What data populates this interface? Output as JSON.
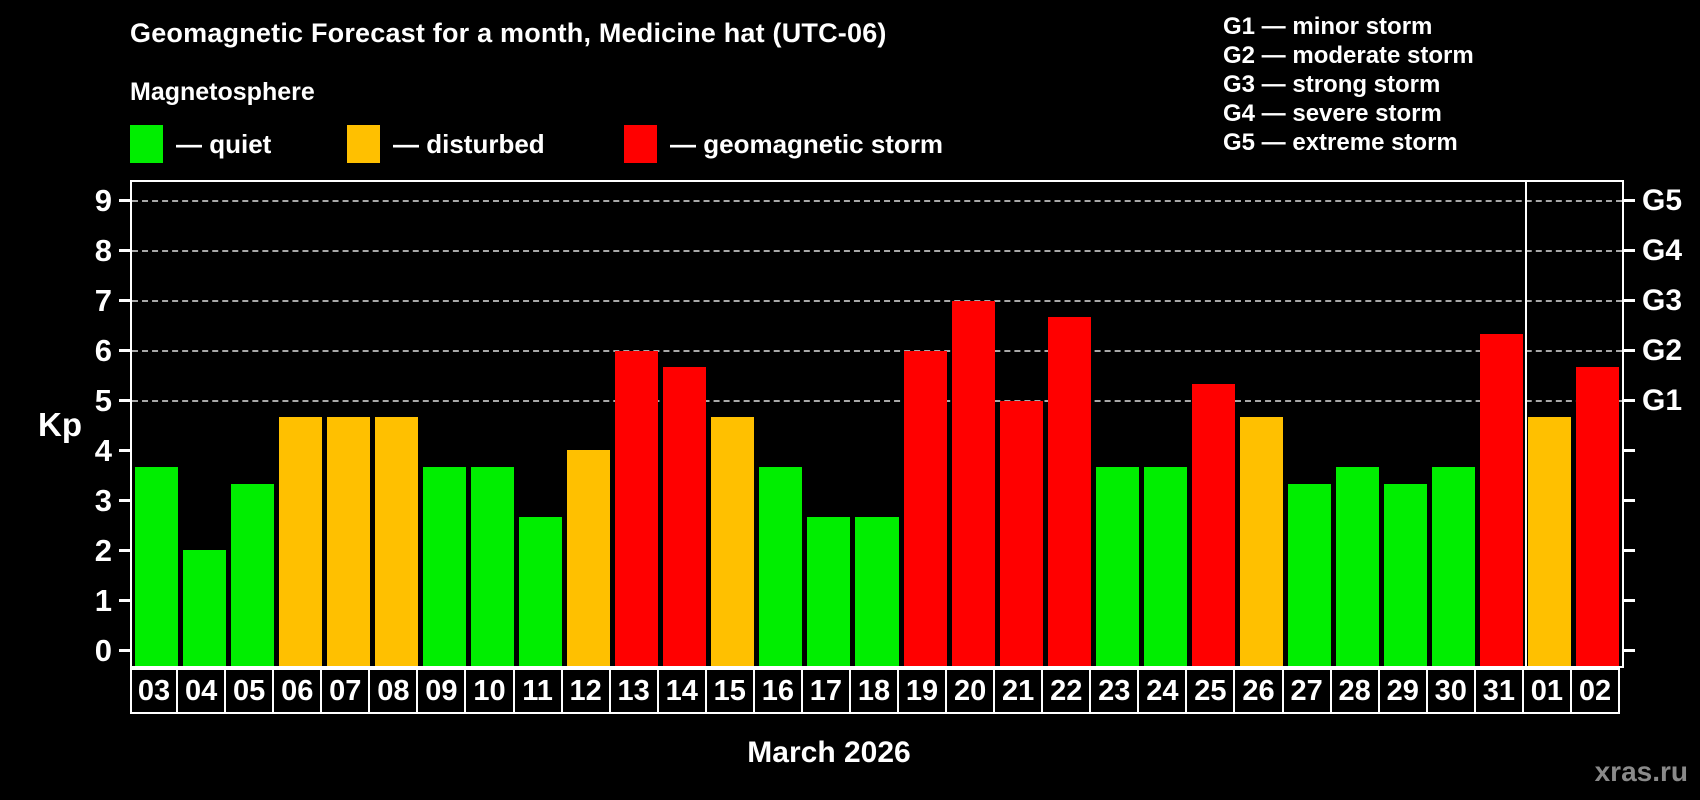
{
  "title": "Geomagnetic Forecast for a month, Medicine hat (UTC-06)",
  "subtitle": "Magnetosphere",
  "legend": [
    {
      "key": "quiet",
      "label": "— quiet",
      "x": 130
    },
    {
      "key": "disturbed",
      "label": "— disturbed",
      "x": 347
    },
    {
      "key": "storm",
      "label": "— geomagnetic storm",
      "x": 624
    }
  ],
  "g_scale_legend": [
    "G1 — minor storm",
    "G2 — moderate storm",
    "G3 — strong storm",
    "G4 — severe storm",
    "G5 — extreme storm"
  ],
  "colors": {
    "quiet": "#00ee00",
    "disturbed": "#ffc000",
    "storm": "#ff0000",
    "grid": "#a8a8a8",
    "axis": "#ffffff",
    "watermark": "#8a8a8a"
  },
  "axis": {
    "y_label": "Kp",
    "y_ticks": [
      0,
      1,
      2,
      3,
      4,
      5,
      6,
      7,
      8,
      9
    ],
    "g_labels": [
      {
        "kp": 5,
        "label": "G1"
      },
      {
        "kp": 6,
        "label": "G2"
      },
      {
        "kp": 7,
        "label": "G3"
      },
      {
        "kp": 8,
        "label": "G4"
      },
      {
        "kp": 9,
        "label": "G5"
      }
    ]
  },
  "x_axis_label": "March 2026",
  "watermark": "xras.ru",
  "chart_data": {
    "type": "bar",
    "title": "Geomagnetic Forecast for a month, Medicine hat (UTC-06)",
    "xlabel": "March 2026",
    "ylabel": "Kp",
    "ylim": [
      0,
      9
    ],
    "grid_kp_levels": [
      5,
      6,
      7,
      8,
      9
    ],
    "legend_position": "top-left",
    "categories": [
      "03",
      "04",
      "05",
      "06",
      "07",
      "08",
      "09",
      "10",
      "11",
      "12",
      "13",
      "14",
      "15",
      "16",
      "17",
      "18",
      "19",
      "20",
      "21",
      "22",
      "23",
      "24",
      "25",
      "26",
      "27",
      "28",
      "29",
      "30",
      "31",
      "01",
      "02"
    ],
    "values": [
      3.67,
      2.0,
      3.33,
      4.67,
      4.67,
      4.67,
      3.67,
      3.67,
      2.67,
      4.0,
      6.0,
      5.67,
      4.67,
      3.67,
      2.67,
      2.67,
      6.0,
      7.0,
      5.0,
      6.67,
      3.67,
      3.67,
      5.33,
      4.67,
      3.33,
      3.67,
      3.33,
      3.67,
      6.33,
      4.67,
      5.67
    ],
    "statuses": [
      "quiet",
      "quiet",
      "quiet",
      "disturbed",
      "disturbed",
      "disturbed",
      "quiet",
      "quiet",
      "quiet",
      "disturbed",
      "storm",
      "storm",
      "disturbed",
      "quiet",
      "quiet",
      "quiet",
      "storm",
      "storm",
      "storm",
      "storm",
      "quiet",
      "quiet",
      "storm",
      "disturbed",
      "quiet",
      "quiet",
      "quiet",
      "quiet",
      "storm",
      "disturbed",
      "storm"
    ],
    "month_separator_before_index": 29
  }
}
